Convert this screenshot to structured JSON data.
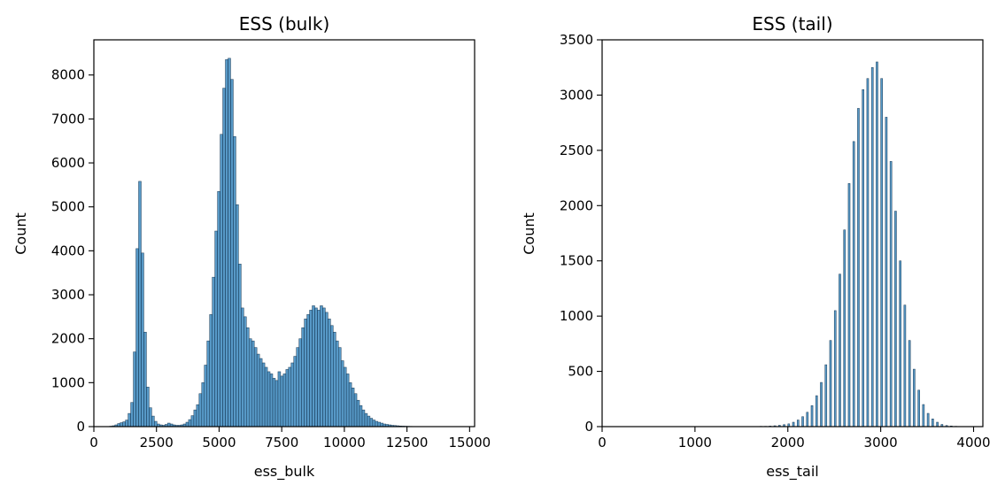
{
  "chart_data": [
    {
      "type": "bar",
      "title": "ESS (bulk)",
      "xlabel": "ess_bulk",
      "ylabel": "Count",
      "xlim": [
        0,
        15200
      ],
      "ylim": [
        0,
        8800
      ],
      "xticks": [
        0,
        2500,
        5000,
        7500,
        10000,
        12500,
        15000
      ],
      "xtick_labels": [
        "0",
        "2500",
        "5000",
        "7500",
        "10000",
        "12500",
        "15000"
      ],
      "yticks": [
        0,
        1000,
        2000,
        3000,
        4000,
        5000,
        6000,
        7000,
        8000
      ],
      "ytick_labels": [
        "0",
        "1000",
        "2000",
        "3000",
        "4000",
        "5000",
        "6000",
        "7000",
        "8000"
      ],
      "bin_width": 105,
      "bins": [
        [
          630,
          10
        ],
        [
          735,
          20
        ],
        [
          840,
          40
        ],
        [
          945,
          70
        ],
        [
          1050,
          90
        ],
        [
          1155,
          110
        ],
        [
          1260,
          150
        ],
        [
          1365,
          300
        ],
        [
          1470,
          550
        ],
        [
          1575,
          1700
        ],
        [
          1680,
          4050
        ],
        [
          1785,
          5580
        ],
        [
          1890,
          3950
        ],
        [
          1995,
          2150
        ],
        [
          2100,
          900
        ],
        [
          2205,
          430
        ],
        [
          2310,
          240
        ],
        [
          2415,
          120
        ],
        [
          2520,
          60
        ],
        [
          2625,
          40
        ],
        [
          2730,
          30
        ],
        [
          2835,
          50
        ],
        [
          2940,
          80
        ],
        [
          3045,
          60
        ],
        [
          3150,
          40
        ],
        [
          3255,
          30
        ],
        [
          3360,
          30
        ],
        [
          3465,
          40
        ],
        [
          3570,
          60
        ],
        [
          3675,
          100
        ],
        [
          3780,
          160
        ],
        [
          3885,
          250
        ],
        [
          3990,
          380
        ],
        [
          4095,
          500
        ],
        [
          4200,
          750
        ],
        [
          4305,
          1000
        ],
        [
          4410,
          1400
        ],
        [
          4515,
          1950
        ],
        [
          4620,
          2550
        ],
        [
          4725,
          3400
        ],
        [
          4830,
          4450
        ],
        [
          4935,
          5350
        ],
        [
          5040,
          6650
        ],
        [
          5145,
          7700
        ],
        [
          5250,
          8350
        ],
        [
          5355,
          8380
        ],
        [
          5460,
          7900
        ],
        [
          5565,
          6600
        ],
        [
          5670,
          5050
        ],
        [
          5775,
          3700
        ],
        [
          5880,
          2700
        ],
        [
          5985,
          2500
        ],
        [
          6090,
          2250
        ],
        [
          6195,
          2000
        ],
        [
          6300,
          1950
        ],
        [
          6405,
          1800
        ],
        [
          6510,
          1650
        ],
        [
          6615,
          1550
        ],
        [
          6720,
          1450
        ],
        [
          6825,
          1350
        ],
        [
          6930,
          1250
        ],
        [
          7035,
          1200
        ],
        [
          7140,
          1100
        ],
        [
          7245,
          1050
        ],
        [
          7350,
          1250
        ],
        [
          7455,
          1150
        ],
        [
          7560,
          1200
        ],
        [
          7665,
          1300
        ],
        [
          7770,
          1350
        ],
        [
          7875,
          1450
        ],
        [
          7980,
          1600
        ],
        [
          8085,
          1800
        ],
        [
          8190,
          2000
        ],
        [
          8295,
          2250
        ],
        [
          8400,
          2450
        ],
        [
          8505,
          2550
        ],
        [
          8610,
          2650
        ],
        [
          8715,
          2750
        ],
        [
          8820,
          2700
        ],
        [
          8925,
          2650
        ],
        [
          9030,
          2750
        ],
        [
          9135,
          2700
        ],
        [
          9240,
          2600
        ],
        [
          9345,
          2450
        ],
        [
          9450,
          2300
        ],
        [
          9555,
          2150
        ],
        [
          9660,
          1950
        ],
        [
          9765,
          1800
        ],
        [
          9870,
          1500
        ],
        [
          9975,
          1350
        ],
        [
          10080,
          1200
        ],
        [
          10185,
          1000
        ],
        [
          10290,
          880
        ],
        [
          10395,
          750
        ],
        [
          10500,
          600
        ],
        [
          10605,
          480
        ],
        [
          10710,
          380
        ],
        [
          10815,
          300
        ],
        [
          10920,
          240
        ],
        [
          11025,
          190
        ],
        [
          11130,
          150
        ],
        [
          11235,
          120
        ],
        [
          11340,
          100
        ],
        [
          11445,
          80
        ],
        [
          11550,
          60
        ],
        [
          11655,
          50
        ],
        [
          11760,
          40
        ],
        [
          11865,
          30
        ],
        [
          11970,
          25
        ],
        [
          12075,
          20
        ],
        [
          12180,
          15
        ],
        [
          12285,
          12
        ],
        [
          12390,
          10
        ],
        [
          12495,
          8
        ],
        [
          12600,
          6
        ],
        [
          12705,
          5
        ],
        [
          12810,
          4
        ],
        [
          12915,
          3
        ],
        [
          13020,
          3
        ],
        [
          13125,
          2
        ],
        [
          13230,
          2
        ],
        [
          13335,
          2
        ],
        [
          13440,
          1
        ],
        [
          13545,
          1
        ],
        [
          13650,
          1
        ],
        [
          14350,
          1
        ]
      ]
    },
    {
      "type": "bar",
      "title": "ESS (tail)",
      "xlabel": "ess_tail",
      "ylabel": "Count",
      "xlim": [
        0,
        4100
      ],
      "ylim": [
        0,
        3500
      ],
      "xticks": [
        0,
        1000,
        2000,
        3000,
        4000
      ],
      "xtick_labels": [
        "0",
        "1000",
        "2000",
        "3000",
        "4000"
      ],
      "yticks": [
        0,
        500,
        1000,
        1500,
        2000,
        2500,
        3000,
        3500
      ],
      "ytick_labels": [
        "0",
        "500",
        "1000",
        "1500",
        "2000",
        "2500",
        "3000",
        "3500"
      ],
      "bin_width": 20,
      "bins": [
        [
          1250,
          1
        ],
        [
          1400,
          1
        ],
        [
          1550,
          2
        ],
        [
          1700,
          3
        ],
        [
          1750,
          3
        ],
        [
          1800,
          5
        ],
        [
          1850,
          8
        ],
        [
          1900,
          12
        ],
        [
          1950,
          18
        ],
        [
          2000,
          25
        ],
        [
          2050,
          40
        ],
        [
          2100,
          60
        ],
        [
          2150,
          90
        ],
        [
          2200,
          130
        ],
        [
          2250,
          190
        ],
        [
          2300,
          280
        ],
        [
          2350,
          400
        ],
        [
          2400,
          560
        ],
        [
          2450,
          780
        ],
        [
          2500,
          1050
        ],
        [
          2550,
          1380
        ],
        [
          2600,
          1780
        ],
        [
          2650,
          2200
        ],
        [
          2700,
          2580
        ],
        [
          2750,
          2880
        ],
        [
          2800,
          3050
        ],
        [
          2850,
          3150
        ],
        [
          2900,
          3250
        ],
        [
          2950,
          3300
        ],
        [
          3000,
          3150
        ],
        [
          3050,
          2800
        ],
        [
          3100,
          2400
        ],
        [
          3150,
          1950
        ],
        [
          3200,
          1500
        ],
        [
          3250,
          1100
        ],
        [
          3300,
          780
        ],
        [
          3350,
          520
        ],
        [
          3400,
          330
        ],
        [
          3450,
          200
        ],
        [
          3500,
          120
        ],
        [
          3550,
          70
        ],
        [
          3600,
          40
        ],
        [
          3650,
          20
        ],
        [
          3700,
          10
        ],
        [
          3750,
          6
        ],
        [
          3800,
          3
        ],
        [
          3850,
          2
        ],
        [
          3900,
          1
        ],
        [
          3950,
          1
        ]
      ]
    }
  ]
}
